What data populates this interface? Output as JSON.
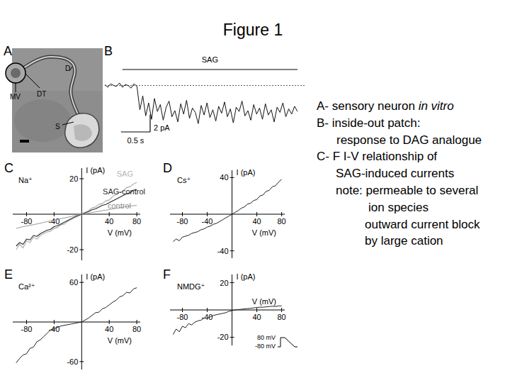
{
  "title": "Figure 1",
  "notes": [
    [
      "A- sensory neuron ",
      "in vitro"
    ],
    [
      "B- inside-out patch:"
    ],
    [
      "response to DAG analogue"
    ],
    [
      "C- F I-V relationship of"
    ],
    [
      "SAG-induced currents"
    ],
    [
      "note: permeable to several"
    ],
    [
      "ion species"
    ],
    [
      "outward current block"
    ],
    [
      "by large cation"
    ]
  ],
  "image": {
    "title": "A",
    "labels": [
      "MV",
      "D",
      "DT",
      "S"
    ]
  },
  "chart_data": [
    {
      "type": "line",
      "title": "B",
      "tick_labels": false,
      "xlim": [
        0,
        3.3
      ],
      "ylim": [
        -6.5,
        2.5
      ],
      "x": [
        0,
        0.05,
        0.1,
        0.15,
        0.2,
        0.25,
        0.3,
        0.35,
        0.4,
        0.45,
        0.5,
        0.55,
        0.6,
        0.65,
        0.7,
        0.75,
        0.8,
        0.85,
        0.9,
        0.95,
        1.0,
        1.05,
        1.1,
        1.15,
        1.2,
        1.25,
        1.3,
        1.35,
        1.4,
        1.45,
        1.5,
        1.55,
        1.6,
        1.65,
        1.7,
        1.75,
        1.8,
        1.85,
        1.9,
        1.95,
        2.0,
        2.05,
        2.1,
        2.15,
        2.2,
        2.25,
        2.3,
        2.35,
        2.4,
        2.45,
        2.5,
        2.55,
        2.6,
        2.65,
        2.7,
        2.75,
        2.8,
        2.85,
        2.9,
        2.95,
        3.0,
        3.05,
        3.1,
        3.15,
        3.2,
        3.25,
        3.3
      ],
      "series": [
        {
          "color": "#111111",
          "values": [
            0.1,
            -0.2,
            0.2,
            0,
            -0.1,
            0.3,
            -0.2,
            0.1,
            0,
            -0.3,
            0.2,
            -0.1,
            -2.8,
            -1.2,
            -3.5,
            -2.0,
            -3.9,
            -1.5,
            -3.0,
            -2.2,
            -4.0,
            -2.5,
            -1.8,
            -3.6,
            -2.9,
            -4.2,
            -2.1,
            -3.3,
            -1.7,
            -3.8,
            -2.6,
            -3.1,
            -4.4,
            -2.3,
            -3.4,
            -2.0,
            -3.7,
            -2.8,
            -4.1,
            -2.4,
            -3.2,
            -1.9,
            -3.6,
            -2.7,
            -4.3,
            -2.5,
            -3.0,
            -1.8,
            -3.5,
            -2.9,
            -4.0,
            -2.2,
            -3.3,
            -2.6,
            -3.9,
            -2.1,
            -3.4,
            -2.8,
            -4.2,
            -2.5,
            -3.1,
            -2.0,
            -3.6,
            -2.7,
            -3.3,
            -2.4,
            -3.0
          ]
        }
      ],
      "annotations": [
        {
          "text": "SAG",
          "x_start": 0.3,
          "x_end": 3.3
        }
      ],
      "scale_bars": {
        "y": {
          "value": 2,
          "label": "2 pA"
        },
        "x": {
          "value": 0.5,
          "label": "0.5 s"
        }
      }
    },
    {
      "type": "line",
      "title": "C",
      "subtitle": "Na⁺",
      "x_label": "V (mV)",
      "y_label": "I (pA)",
      "xlim": [
        -100,
        85
      ],
      "ylim": [
        -26,
        26
      ],
      "xticks": [
        -80,
        -40,
        40,
        80
      ],
      "yticks": [
        20,
        -20
      ],
      "x": [
        -95,
        -90,
        -85,
        -80,
        -75,
        -70,
        -65,
        -60,
        -55,
        -50,
        -45,
        -40,
        -35,
        -30,
        -25,
        -20,
        -15,
        -10,
        -5,
        0,
        5,
        10,
        15,
        20,
        25,
        30,
        35,
        40,
        45,
        50,
        55,
        60,
        65,
        70,
        75,
        80
      ],
      "series": [
        {
          "name": "SAG",
          "color": "#b4b4b4",
          "values": [
            -20,
            -17,
            -19,
            -15,
            -16,
            -13,
            -14,
            -12,
            -11,
            -10,
            -9.5,
            -8,
            -7.5,
            -6,
            -5.5,
            -4,
            -3,
            -2,
            -1,
            0,
            1,
            2,
            3.5,
            4,
            5.5,
            6,
            7.5,
            8,
            10,
            11,
            12.5,
            13,
            15,
            15.5,
            17,
            18
          ]
        },
        {
          "name": "SAG-control",
          "color": "#2a2a2a",
          "values": [
            -18,
            -16,
            -17,
            -14,
            -14.5,
            -12,
            -12.5,
            -11,
            -10,
            -9,
            -8.5,
            -7,
            -6.5,
            -5.5,
            -4.5,
            -3.5,
            -2.5,
            -1.5,
            -0.8,
            0,
            0.8,
            1.5,
            2.5,
            3,
            4,
            5,
            5.5,
            6.5,
            7.5,
            8.5,
            9.5,
            10.5,
            11.5,
            12,
            13.5,
            14
          ]
        },
        {
          "name": "control",
          "color": "#8c8c8c",
          "values": [
            -8,
            -7.5,
            -7,
            -6.7,
            -6.3,
            -5.9,
            -5.5,
            -5.1,
            -4.6,
            -4.2,
            -3.8,
            -3.4,
            -2.9,
            -2.5,
            -2.1,
            -1.7,
            -1.3,
            -0.8,
            -0.4,
            0,
            0.3,
            0.6,
            1,
            1.3,
            1.6,
            2,
            2.3,
            2.6,
            3,
            3.3,
            3.6,
            4,
            4.3,
            4.6,
            4.8,
            5
          ]
        }
      ]
    },
    {
      "type": "line",
      "title": "D",
      "subtitle": "Cs⁺",
      "x_label": "V (mV)",
      "y_label": "I (pA)",
      "xlim": [
        -100,
        85
      ],
      "ylim": [
        -48,
        48
      ],
      "xticks": [
        -80,
        -40,
        40,
        80
      ],
      "yticks": [
        40,
        -40
      ],
      "x": [
        -95,
        -90,
        -85,
        -80,
        -75,
        -70,
        -65,
        -60,
        -55,
        -50,
        -45,
        -40,
        -35,
        -30,
        -25,
        -20,
        -15,
        -10,
        -5,
        0,
        5,
        10,
        15,
        20,
        25,
        30,
        35,
        40,
        45,
        50,
        55,
        60,
        65,
        70,
        75,
        80
      ],
      "series": [
        {
          "color": "#222222",
          "values": [
            -30,
            -27,
            -29,
            -25,
            -24,
            -23,
            -21,
            -20,
            -19,
            -17,
            -16,
            -14,
            -13,
            -11,
            -10,
            -8,
            -6,
            -4,
            -2,
            0,
            2,
            4,
            6.5,
            8,
            11,
            12,
            15,
            16,
            20,
            21,
            25,
            26,
            30,
            31,
            35,
            38
          ]
        }
      ]
    },
    {
      "type": "line",
      "title": "E",
      "subtitle": "Ca²⁺",
      "x_label": "V (mV)",
      "y_label": "I (pA)",
      "xlim": [
        -100,
        85
      ],
      "ylim": [
        -72,
        72
      ],
      "xticks": [
        -80,
        -40,
        40,
        80
      ],
      "yticks": [
        60,
        -60
      ],
      "x": [
        -95,
        -90,
        -85,
        -80,
        -75,
        -70,
        -65,
        -60,
        -55,
        -50,
        -45,
        -40,
        -35,
        -30,
        -25,
        -20,
        -15,
        -10,
        -5,
        0,
        5,
        10,
        15,
        20,
        25,
        30,
        35,
        40,
        45,
        50,
        55,
        60,
        65,
        70,
        75,
        80
      ],
      "series": [
        {
          "color": "#222222",
          "values": [
            -62,
            -55,
            -50,
            -48,
            -40,
            -38,
            -30,
            -27,
            -22,
            -17,
            -12,
            -10,
            -8,
            -6,
            -5,
            -4,
            -3,
            -2,
            -1,
            0,
            3,
            6,
            10,
            14,
            15,
            20,
            22,
            26,
            30,
            33,
            38,
            40,
            45,
            44,
            50,
            52
          ]
        }
      ]
    },
    {
      "type": "line",
      "title": "F",
      "subtitle": "NMDG⁺",
      "x_label": "V (mV)",
      "y_label": "I (pA)",
      "xlim": [
        -100,
        85
      ],
      "ylim": [
        -26,
        26
      ],
      "xticks": [
        -80,
        -40,
        40,
        80
      ],
      "yticks": [
        20,
        -20
      ],
      "x": [
        -95,
        -90,
        -85,
        -80,
        -75,
        -70,
        -65,
        -60,
        -55,
        -50,
        -45,
        -40,
        -35,
        -30,
        -25,
        -20,
        -15,
        -10,
        -5,
        0,
        5,
        10,
        15,
        20,
        25,
        30,
        35,
        40,
        45,
        50,
        55,
        60,
        65,
        70,
        75,
        80
      ],
      "series": [
        {
          "color": "#222222",
          "values": [
            -18,
            -14,
            -16,
            -12,
            -13,
            -10,
            -11,
            -9,
            -8,
            -7.5,
            -6,
            -6,
            -5,
            -4,
            -3.5,
            -3,
            -2.5,
            -2,
            -1,
            -0.5,
            0,
            0.3,
            0.5,
            0.8,
            1,
            1.2,
            1.5,
            1.8,
            2,
            2,
            2.3,
            2.5,
            2.7,
            2.5,
            3,
            3
          ]
        }
      ],
      "inset_labels": [
        "80 mV",
        "-80 mV"
      ]
    }
  ]
}
